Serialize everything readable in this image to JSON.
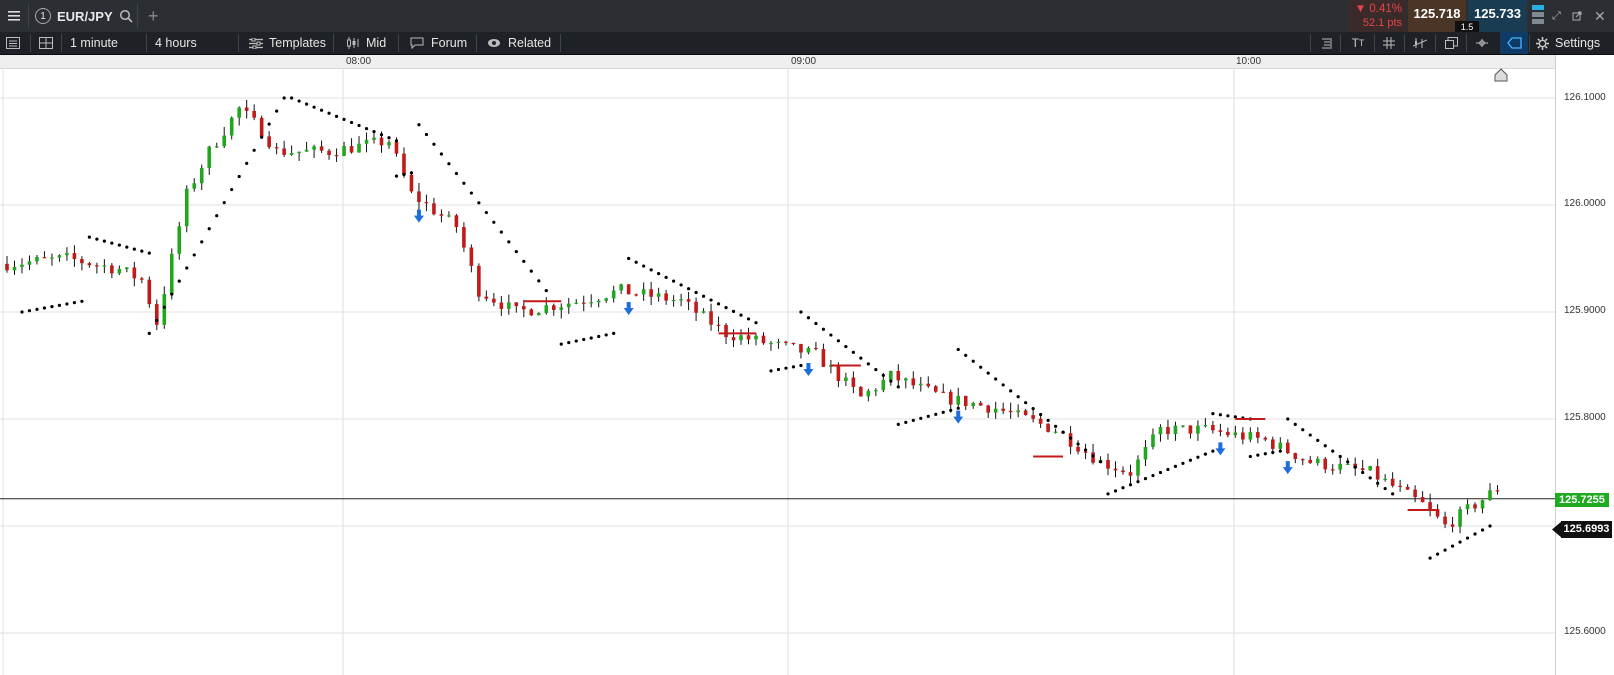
{
  "header": {
    "menu_icon": "hamburger-menu-icon",
    "tab_number": "1",
    "symbol": "EUR/JPY",
    "change_pct": "▼ 0.41%",
    "change_pts": "52.1 pts",
    "bid": "125.718",
    "ask": "125.733",
    "spread": "1.5"
  },
  "toolbar": {
    "interval": "1 minute",
    "range": "4 hours",
    "templates": "Templates",
    "price_type": "Mid",
    "forum": "Forum",
    "related": "Related",
    "settings": "Settings"
  },
  "x_axis": {
    "labels": [
      "08:00",
      "09:00",
      "10:00"
    ]
  },
  "y_axis": {
    "labels": [
      "126.1000",
      "126.0000",
      "125.9000",
      "125.8000",
      "125.6000"
    ]
  },
  "price_markers": {
    "current": "125.7255",
    "crosshair": "125.6993"
  },
  "colors": {
    "up": "#22a61d",
    "down": "#c11a1a",
    "sar": "#000000",
    "signal": "#1e6fd9",
    "current_tag": "#1faa1f"
  },
  "chart_data": {
    "type": "candlestick",
    "symbol": "EUR/JPY",
    "interval": "1 minute",
    "ylim": [
      125.56,
      126.13
    ],
    "y_ticks": [
      126.1,
      126.0,
      125.9,
      125.8,
      125.6
    ],
    "x_ticks": [
      "08:00",
      "09:00",
      "10:00"
    ],
    "current_price": 125.7255,
    "close_path": [
      [
        0,
        125.945
      ],
      [
        8,
        125.95
      ],
      [
        15,
        125.94
      ],
      [
        18,
        125.93
      ],
      [
        20,
        125.89
      ],
      [
        24,
        126.01
      ],
      [
        27,
        126.05
      ],
      [
        31,
        126.09
      ],
      [
        34,
        126.07
      ],
      [
        36,
        126.05
      ],
      [
        43,
        126.05
      ],
      [
        51,
        126.06
      ],
      [
        54,
        126.01
      ],
      [
        60,
        125.98
      ],
      [
        63,
        125.92
      ],
      [
        68,
        125.9
      ],
      [
        76,
        125.91
      ],
      [
        82,
        125.92
      ],
      [
        90,
        125.91
      ],
      [
        96,
        125.88
      ],
      [
        102,
        125.87
      ],
      [
        108,
        125.86
      ],
      [
        114,
        125.82
      ],
      [
        118,
        125.84
      ],
      [
        125,
        125.82
      ],
      [
        132,
        125.81
      ],
      [
        140,
        125.79
      ],
      [
        146,
        125.76
      ],
      [
        150,
        125.75
      ],
      [
        154,
        125.79
      ],
      [
        160,
        125.79
      ],
      [
        168,
        125.78
      ],
      [
        174,
        125.76
      ],
      [
        182,
        125.75
      ],
      [
        189,
        125.72
      ],
      [
        192,
        125.7
      ],
      [
        196,
        125.72
      ],
      [
        199,
        125.735
      ]
    ],
    "signal_arrows": [
      55,
      83,
      107,
      127,
      162,
      171
    ],
    "sar_segments": [
      {
        "from": 2,
        "to": 10,
        "start": 125.9,
        "end": 125.91
      },
      {
        "from": 11,
        "to": 19,
        "start": 125.97,
        "end": 125.955
      },
      {
        "from": 19,
        "to": 37,
        "start": 125.88,
        "end": 126.1
      },
      {
        "from": 38,
        "to": 52,
        "start": 126.1,
        "end": 126.06
      },
      {
        "from": 52,
        "to": 54,
        "start": 126.027,
        "end": 126.03
      },
      {
        "from": 55,
        "to": 72,
        "start": 126.075,
        "end": 125.92
      },
      {
        "from": 74,
        "to": 81,
        "start": 125.87,
        "end": 125.88
      },
      {
        "from": 83,
        "to": 100,
        "start": 125.95,
        "end": 125.89
      },
      {
        "from": 102,
        "to": 106,
        "start": 125.845,
        "end": 125.85
      },
      {
        "from": 106,
        "to": 119,
        "start": 125.9,
        "end": 125.83
      },
      {
        "from": 119,
        "to": 127,
        "start": 125.795,
        "end": 125.81
      },
      {
        "from": 127,
        "to": 146,
        "start": 125.865,
        "end": 125.76
      },
      {
        "from": 147,
        "to": 161,
        "start": 125.73,
        "end": 125.77
      },
      {
        "from": 161,
        "to": 166,
        "start": 125.805,
        "end": 125.8
      },
      {
        "from": 166,
        "to": 170,
        "start": 125.765,
        "end": 125.77
      },
      {
        "from": 171,
        "to": 185,
        "start": 125.8,
        "end": 125.73
      },
      {
        "from": 190,
        "to": 198,
        "start": 125.67,
        "end": 125.7
      }
    ]
  }
}
